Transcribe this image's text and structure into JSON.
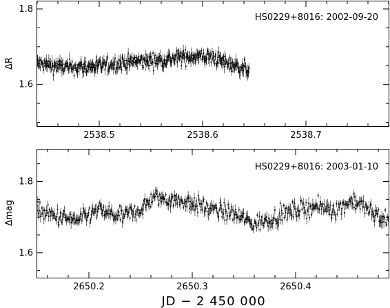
{
  "chart_data": [
    {
      "type": "scatter",
      "annotation": "HS0229+8016: 2002-09-20",
      "ylabel": "ΔR",
      "xlim": [
        2538.44,
        2538.78
      ],
      "ylim": [
        1.82,
        1.49
      ],
      "yticks": [
        1.6,
        1.8
      ],
      "ytick_labels": [
        "1.6",
        "1.8"
      ],
      "xticks": [
        2538.5,
        2538.6,
        2538.7
      ],
      "xtick_labels": [
        "2538.5",
        "2538.6",
        "2538.7"
      ],
      "series": [
        {
          "markers": "dots with error bars",
          "x_range": [
            2538.44,
            2538.645
          ],
          "trend_x": [
            2538.44,
            2538.47,
            2538.5,
            2538.53,
            2538.56,
            2538.59,
            2538.61,
            2538.625,
            2538.645
          ],
          "trend_y": [
            1.655,
            1.645,
            1.648,
            1.66,
            1.665,
            1.675,
            1.672,
            1.655,
            1.64
          ],
          "scatter": 0.018
        }
      ]
    },
    {
      "type": "scatter",
      "annotation": "HS0229+8016: 2003-01-10",
      "ylabel": "Δmag",
      "xlim": [
        2650.15,
        2650.49
      ],
      "ylim": [
        1.89,
        1.53
      ],
      "yticks": [
        1.6,
        1.8
      ],
      "ytick_labels": [
        "1.6",
        "1.8"
      ],
      "xticks": [
        2650.2,
        2650.3,
        2650.4
      ],
      "xtick_labels": [
        "2650.2",
        "2650.3",
        "2650.4"
      ],
      "series": [
        {
          "markers": "dots with error bars",
          "x_range": [
            2650.15,
            2650.49
          ],
          "trend_x": [
            2650.15,
            2650.17,
            2650.19,
            2650.21,
            2650.23,
            2650.25,
            2650.262,
            2650.28,
            2650.3,
            2650.32,
            2650.34,
            2650.36,
            2650.38,
            2650.4,
            2650.42,
            2650.44,
            2650.455,
            2650.47,
            2650.49
          ],
          "trend_y": [
            1.72,
            1.7,
            1.69,
            1.72,
            1.7,
            1.72,
            1.755,
            1.75,
            1.74,
            1.72,
            1.71,
            1.68,
            1.7,
            1.72,
            1.73,
            1.72,
            1.75,
            1.72,
            1.69
          ],
          "scatter": 0.022
        }
      ]
    }
  ],
  "xlabel": "JD − 2 450 000"
}
